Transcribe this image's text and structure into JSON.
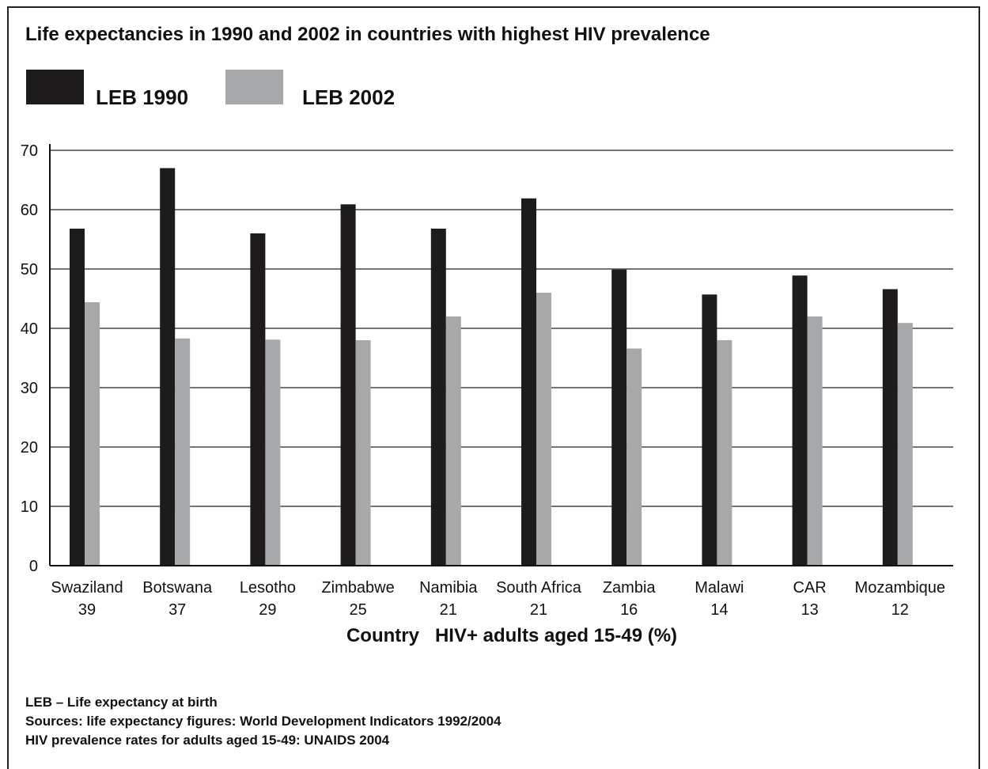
{
  "chart_data": {
    "type": "bar",
    "title": "Life expectancies in 1990 and 2002 in countries with highest HIV prevalence",
    "categories": [
      "Swaziland",
      "Botswana",
      "Lesotho",
      "Zimbabwe",
      "Namibia",
      "South Africa",
      "Zambia",
      "Malawi",
      "CAR",
      "Mozambique"
    ],
    "hiv_prevalence": [
      "39",
      "37",
      "29",
      "25",
      "21",
      "21",
      "16",
      "14",
      "13",
      "12"
    ],
    "series": [
      {
        "name": "LEB 1990",
        "color": "#1e1b1c",
        "values": [
          56.8,
          67.0,
          56.0,
          60.9,
          56.8,
          61.9,
          49.9,
          45.7,
          48.9,
          46.6
        ]
      },
      {
        "name": "LEB 2002",
        "color": "#a7a8aa",
        "values": [
          44.4,
          38.3,
          38.1,
          38.0,
          42.0,
          46.0,
          36.6,
          38.0,
          42.0,
          40.9
        ]
      }
    ],
    "xlabel": "Country   HIV+ adults aged 15-49 (%)",
    "ylabel": "",
    "ylim": [
      0,
      70
    ],
    "yticks": [
      0,
      10,
      20,
      30,
      40,
      50,
      60,
      70
    ],
    "grid": true,
    "legend_position": "top-left"
  },
  "notes": [
    "LEB – Life expectancy at birth",
    "Sources: life expectancy figures: World Development Indicators 1992/2004",
    "HIV prevalence rates for adults aged 15-49: UNAIDS 2004"
  ]
}
